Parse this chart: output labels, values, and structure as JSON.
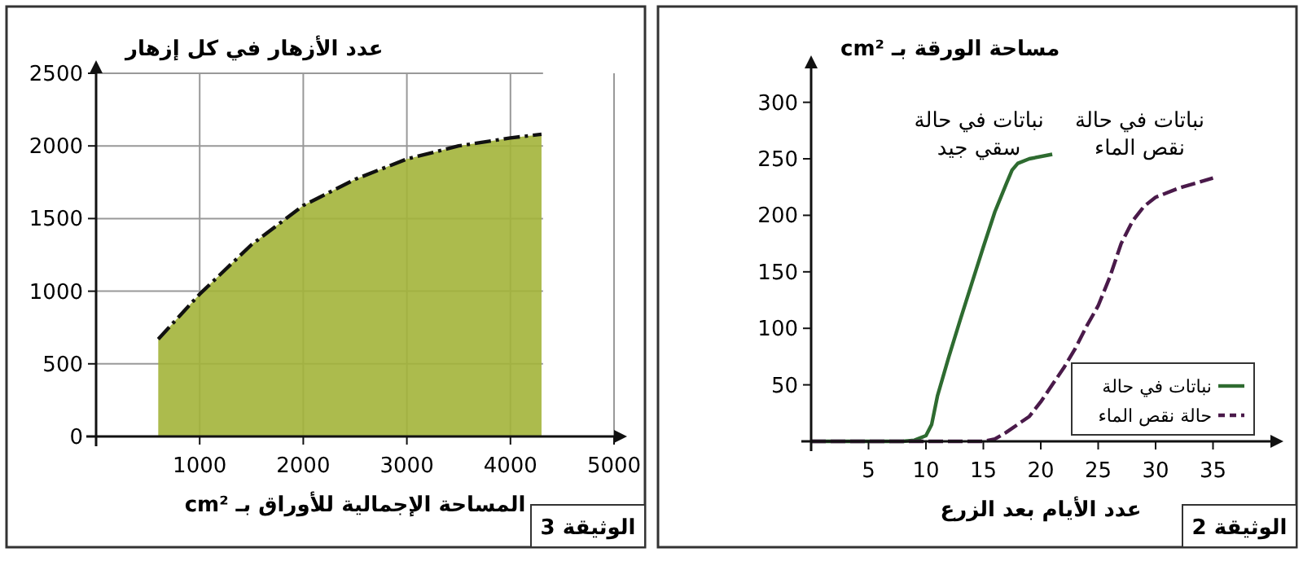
{
  "chart_data": [
    {
      "type": "area",
      "xlabel": "المساحة الإجمالية للأوراق بـ cm²",
      "ylabel": "عدد الأزهار في كل إزهار",
      "xlim": [
        0,
        5000
      ],
      "ylim": [
        0,
        2500
      ],
      "xticks": [
        1000,
        2000,
        3000,
        4000,
        5000
      ],
      "yticks": [
        0,
        500,
        1000,
        1500,
        2000,
        2500
      ],
      "grid": true,
      "line_style": "dashed",
      "series": [
        {
          "color": "#a3b43a",
          "x": [
            600,
            1000,
            1500,
            2000,
            2500,
            3000,
            3500,
            4000,
            4300
          ],
          "values": [
            670,
            980,
            1320,
            1590,
            1770,
            1910,
            2000,
            2055,
            2080
          ]
        }
      ],
      "annotations": [
        "الوثيقة 3"
      ]
    },
    {
      "type": "line",
      "xlabel": "عدد الأيام بعد الزرع",
      "ylabel": "مساحة الورقة بـ cm²",
      "xlim": [
        0,
        40
      ],
      "ylim": [
        0,
        330
      ],
      "xticks": [
        5,
        10,
        15,
        20,
        25,
        30,
        35
      ],
      "yticks": [
        50,
        100,
        150,
        200,
        250,
        300
      ],
      "legend": "bottom right",
      "series": [
        {
          "name": "نباتات في حالة",
          "color": "#2e6b30",
          "line_style": "solid",
          "x": [
            0,
            8,
            9,
            10,
            10.5,
            11,
            12,
            13,
            14,
            15,
            16,
            17,
            17.5,
            18,
            19,
            21
          ],
          "values": [
            0,
            0,
            1,
            5,
            15,
            40,
            75,
            108,
            140,
            172,
            203,
            228,
            240,
            246,
            250,
            254
          ]
        },
        {
          "name": "حالة نقص الماء",
          "color": "#4a1a4a",
          "line_style": "dashed",
          "x": [
            0,
            15,
            16,
            17,
            18,
            19,
            20,
            21,
            22,
            23,
            24,
            25,
            26,
            27,
            28,
            29,
            30,
            32,
            35
          ],
          "values": [
            0,
            0,
            2,
            8,
            15,
            22,
            35,
            50,
            65,
            82,
            102,
            120,
            145,
            175,
            195,
            208,
            216,
            224,
            233
          ]
        }
      ],
      "annotations": [
        "نباتات في حالة سقي جيد",
        "نباتات في حالة نقص الماء",
        "الوثيقة 2"
      ]
    }
  ]
}
